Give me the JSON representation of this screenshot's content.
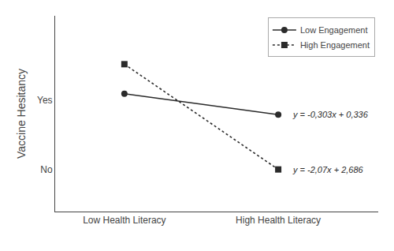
{
  "chart_data": {
    "type": "line",
    "categories": [
      "Low Health Literacy",
      "High Health Literacy"
    ],
    "series": [
      {
        "name": "Low Engagement",
        "color": "#2b2b2b",
        "marker": "circle",
        "line_style": "solid",
        "values": [
          0.58,
          0.48
        ]
      },
      {
        "name": "High Engagement",
        "color": "#2b2b2b",
        "marker": "square",
        "line_style": "dotted",
        "values": [
          0.72,
          0.22
        ]
      }
    ],
    "ylabel": "Vaccine Hesitancy",
    "ylim": [
      0.02,
      0.95
    ],
    "yticks": [
      {
        "value": 0.22,
        "label": "No"
      },
      {
        "value": 0.55,
        "label": "Yes"
      }
    ],
    "annotations": [
      "y = -0,303x + 0,336",
      "y = -2,07x + 2,686"
    ],
    "grid": false,
    "legend": "upper right"
  }
}
